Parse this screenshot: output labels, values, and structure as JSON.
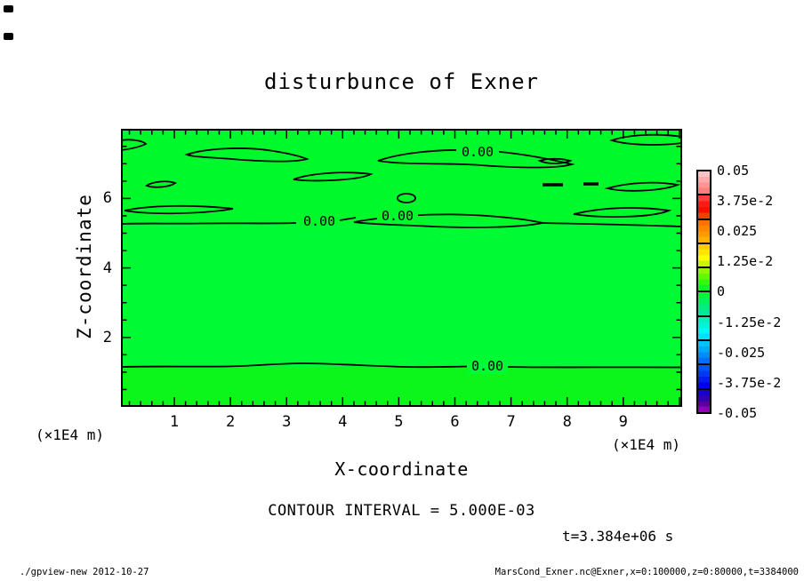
{
  "title": "disturbunce of Exner",
  "plot": {
    "x_axis": {
      "label": "X-coordinate",
      "unit_left": "(×1E4 m)",
      "unit_right": "(×1E4 m)",
      "ticks": [
        "1",
        "2",
        "3",
        "4",
        "5",
        "6",
        "7",
        "8",
        "9"
      ]
    },
    "y_axis": {
      "label": "Z-coordinate",
      "ticks": [
        "6",
        "4",
        "2"
      ]
    },
    "contour_labels": [
      "0.00",
      "0.00",
      "0.00",
      "0.00"
    ],
    "field_colors": {
      "upper": "#00F92B",
      "middle": "#00FA33",
      "lower": "#0DF61C"
    }
  },
  "annotations": {
    "contour_interval": "CONTOUR INTERVAL = 5.000E-03",
    "time": "t=3.384e+06 s"
  },
  "colorbar": {
    "labels": [
      "0.05",
      "3.75e-2",
      "0.025",
      "1.25e-2",
      "0",
      "-1.25e-2",
      "-0.025",
      "-3.75e-2",
      "-0.05"
    ],
    "segments": [
      [
        "#FFC2C2",
        "#FFABAB",
        "#FF9494",
        "#FF7D7D"
      ],
      [
        "#FF3C3C",
        "#FF1A1A",
        "#F90E00",
        "#F04000"
      ],
      [
        "#FF7100",
        "#FF8600",
        "#FF9B00",
        "#FFB000"
      ],
      [
        "#FFCC00",
        "#FFE500",
        "#FFFE00",
        "#C9F700"
      ],
      [
        "#90F800",
        "#62F800",
        "#34F80E",
        "#0CF81E"
      ],
      [
        "#00F83C",
        "#00F35C",
        "#00EE7C",
        "#00E89C"
      ],
      [
        "#00F2BC",
        "#00F5D8",
        "#00F8F4",
        "#00E0F8"
      ],
      [
        "#00C4F8",
        "#00A8F8",
        "#008CF8",
        "#0070F8"
      ],
      [
        "#0054F6",
        "#0038F4",
        "#001CF2",
        "#0000F0"
      ],
      [
        "#1400D4",
        "#3200B2",
        "#5A009A",
        "#9000B8"
      ]
    ]
  },
  "footer": {
    "left": "./gpview-new  2012-10-27",
    "right": "MarsCond_Exner.nc@Exner,x=0:100000,z=0:80000,t=3384000"
  },
  "chart_data": {
    "type": "heatmap",
    "title": "disturbunce of Exner",
    "xlabel": "X-coordinate (×1E4 m)",
    "ylabel": "Z-coordinate (×1E4 m)",
    "x_range": [
      0,
      10
    ],
    "z_range": [
      0,
      8
    ],
    "x_ticks": [
      1,
      2,
      3,
      4,
      5,
      6,
      7,
      8,
      9
    ],
    "z_ticks": [
      2,
      4,
      6
    ],
    "contour_interval": 0.005,
    "contour_line_value": 0.0,
    "zero_contour_heights_z": [
      1.15,
      5.35
    ],
    "field_value_range_shown": [
      -0.05,
      0.05
    ],
    "colorbar_tick_values": [
      0.05,
      0.0375,
      0.025,
      0.0125,
      0,
      -0.0125,
      -0.025,
      -0.0375,
      -0.05
    ],
    "time_label": "t=3.384e+06 s",
    "legend_position": "right",
    "grid": false,
    "notes": "Field is approximately zero everywhere (uniform green); 0.00 contour lines cross the full width near z=1.15 and z=5.35 (x1E4 m); several closed 0.00 contour loops between z=5.5 and z=8."
  }
}
